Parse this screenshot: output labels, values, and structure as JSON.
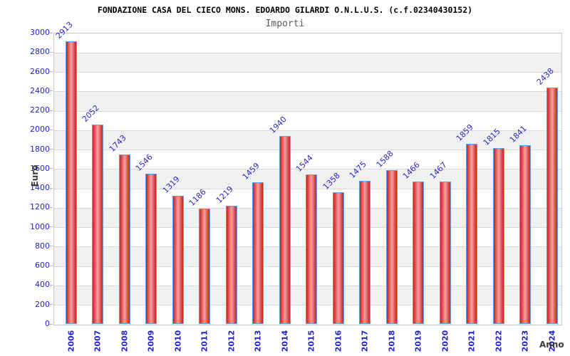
{
  "header": {
    "title": "FONDAZIONE CASA DEL CIECO MONS. EDOARDO GILARDI O.N.L.U.S. (c.f.02340430152)",
    "subtitle": "Importi"
  },
  "chart_data": {
    "type": "bar",
    "title": "FONDAZIONE CASA DEL CIECO MONS. EDOARDO GILARDI O.N.L.U.S. (c.f.02340430152)",
    "subtitle": "Importi",
    "xlabel": "Anno",
    "ylabel": "Euro",
    "categories": [
      "2006",
      "2007",
      "2008",
      "2009",
      "2010",
      "2011",
      "2012",
      "2013",
      "2014",
      "2015",
      "2016",
      "2017",
      "2018",
      "2019",
      "2020",
      "2021",
      "2022",
      "2023",
      "2024"
    ],
    "values": [
      2913,
      2052,
      1743,
      1546,
      1319,
      1186,
      1219,
      1459,
      1940,
      1544,
      1358,
      1475,
      1588,
      1466,
      1467,
      1859,
      1815,
      1841,
      2438
    ],
    "ylim": [
      0,
      3000
    ],
    "ytick_step": 200,
    "grid": "horizontal-bands",
    "legend": "none",
    "colors": {
      "tick_label": "#2323cb",
      "value_label": "#2a2ac8",
      "bar_edge_dark": "#c22525",
      "bar_mid": "#e05555",
      "bar_center_light": "#f5a0a0",
      "bar_border": "#62a0e8",
      "band_gray": "#f1f1f1",
      "band_white": "#ffffff",
      "gridline": "#dadada",
      "plot_border": "#c6c6c6",
      "axis_title": "#3c3c3c",
      "title": "#000000",
      "subtitle": "#5a5a5a"
    }
  }
}
